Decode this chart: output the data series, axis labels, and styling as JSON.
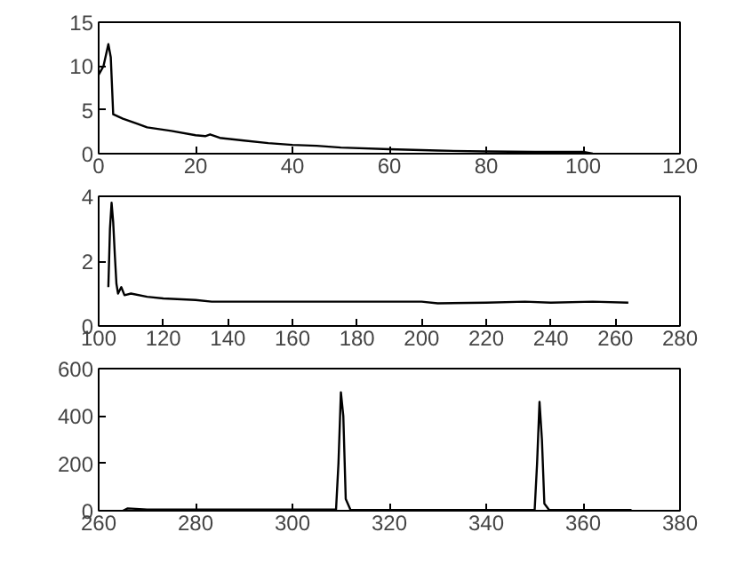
{
  "chart_data": [
    {
      "type": "line",
      "x": [
        0,
        1,
        2,
        2.5,
        3,
        5,
        8,
        10,
        15,
        20,
        22,
        23,
        25,
        30,
        35,
        40,
        45,
        50,
        60,
        70,
        80,
        90,
        100,
        102
      ],
      "values": [
        9,
        10,
        12.5,
        11,
        4.5,
        4,
        3.4,
        3.0,
        2.6,
        2.1,
        2.0,
        2.2,
        1.8,
        1.5,
        1.2,
        1.0,
        0.9,
        0.7,
        0.5,
        0.35,
        0.25,
        0.2,
        0.2,
        0
      ],
      "color": "#000000",
      "xlim": [
        0,
        120
      ],
      "xticks": [
        0,
        20,
        40,
        60,
        80,
        100,
        120
      ],
      "ylim": [
        0,
        15
      ],
      "yticks": [
        0,
        5,
        10,
        15
      ],
      "grid": false
    },
    {
      "type": "line",
      "x": [
        103,
        103.5,
        104,
        104.5,
        105,
        105.5,
        106,
        107,
        108,
        110,
        115,
        120,
        130,
        135,
        150,
        200,
        205,
        220,
        232,
        240,
        253,
        264
      ],
      "values": [
        1.2,
        3,
        3.8,
        3.2,
        2.2,
        1.3,
        1.0,
        1.2,
        0.95,
        1.0,
        0.9,
        0.85,
        0.8,
        0.75,
        0.75,
        0.75,
        0.7,
        0.72,
        0.75,
        0.72,
        0.75,
        0.72
      ],
      "color": "#000000",
      "xlim": [
        100,
        280
      ],
      "xticks": [
        100,
        120,
        140,
        160,
        180,
        200,
        220,
        240,
        260,
        280
      ],
      "ylim": [
        0,
        4
      ],
      "yticks": [
        0,
        2,
        4
      ],
      "grid": false
    },
    {
      "type": "line",
      "x": [
        265,
        266,
        270,
        309,
        309.5,
        310,
        310.5,
        311,
        312,
        350,
        350.5,
        351,
        351.5,
        352,
        353,
        370
      ],
      "values": [
        0,
        10,
        5,
        5,
        200,
        500,
        400,
        50,
        3,
        3,
        200,
        460,
        300,
        30,
        3,
        3
      ],
      "color": "#000000",
      "xlim": [
        260,
        380
      ],
      "xticks": [
        260,
        280,
        300,
        320,
        340,
        360,
        380
      ],
      "ylim": [
        0,
        600
      ],
      "yticks": [
        0,
        200,
        400,
        600
      ],
      "grid": false
    }
  ]
}
